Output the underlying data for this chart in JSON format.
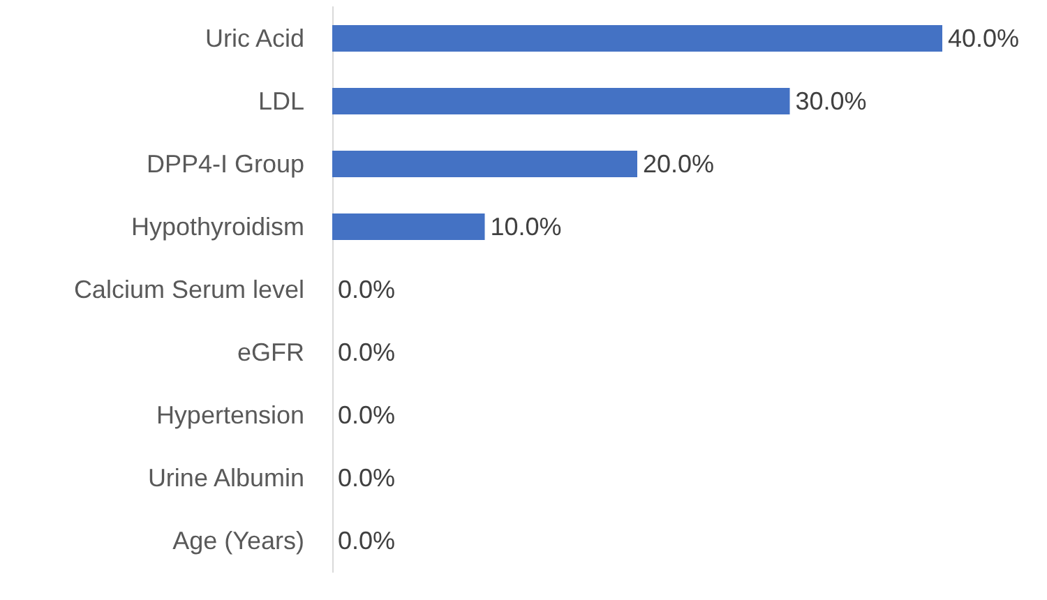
{
  "chart_data": {
    "type": "bar",
    "orientation": "horizontal",
    "categories": [
      "Uric Acid",
      "LDL",
      "DPP4-I Group",
      "Hypothyroidism",
      "Calcium Serum level",
      "eGFR",
      "Hypertension",
      "Urine Albumin",
      "Age (Years)"
    ],
    "values": [
      40,
      30,
      20,
      10,
      0,
      0,
      0,
      0,
      0
    ],
    "value_labels": [
      "40.0%",
      "30.0%",
      "20.0%",
      "10.0%",
      "0.0%",
      "0.0%",
      "0.0%",
      "0.0%",
      "0.0%"
    ],
    "color": "#4472c4"
  }
}
